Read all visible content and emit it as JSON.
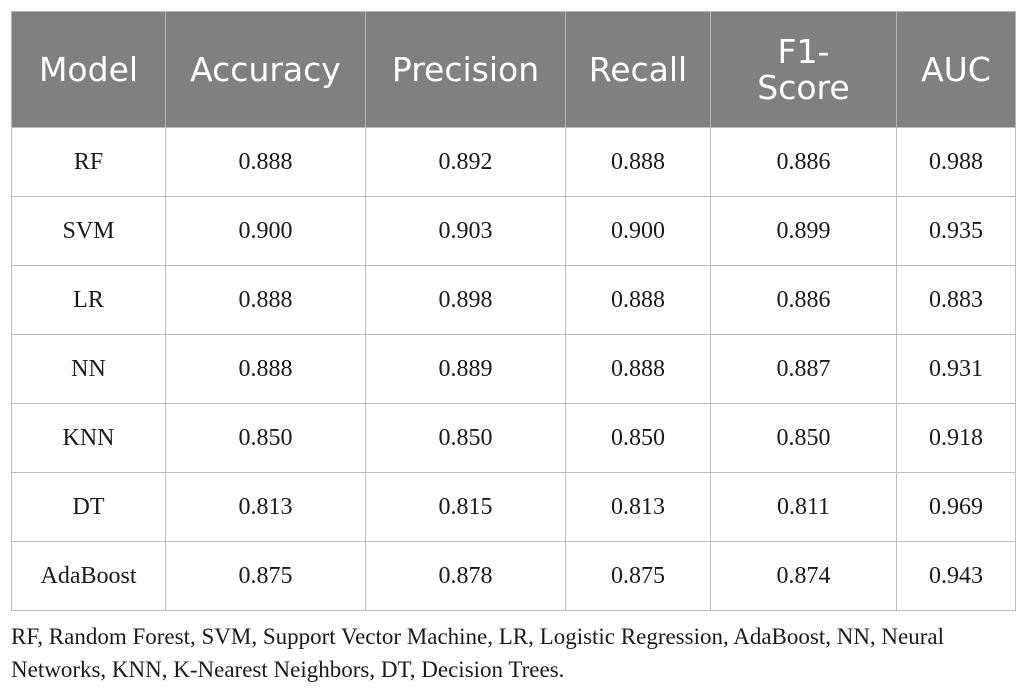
{
  "table": {
    "headers": [
      "Model",
      "Accuracy",
      "Precision",
      "Recall",
      "F1-Score",
      "AUC"
    ],
    "rows": [
      [
        "RF",
        "0.888",
        "0.892",
        "0.888",
        "0.886",
        "0.988"
      ],
      [
        "SVM",
        "0.900",
        "0.903",
        "0.900",
        "0.899",
        "0.935"
      ],
      [
        "LR",
        "0.888",
        "0.898",
        "0.888",
        "0.886",
        "0.883"
      ],
      [
        "NN",
        "0.888",
        "0.889",
        "0.888",
        "0.887",
        "0.931"
      ],
      [
        "KNN",
        "0.850",
        "0.850",
        "0.850",
        "0.850",
        "0.918"
      ],
      [
        "DT",
        "0.813",
        "0.815",
        "0.813",
        "0.811",
        "0.969"
      ],
      [
        "AdaBoost",
        "0.875",
        "0.878",
        "0.875",
        "0.874",
        "0.943"
      ]
    ]
  },
  "footnote": "RF, Random Forest, SVM, Support Vector Machine, LR, Logistic Regression, AdaBoost, NN, Neural Networks, KNN, K-Nearest Neighbors, DT, Decision Trees.",
  "colors": {
    "header_background": "#808080",
    "header_text": "#ffffff",
    "grid_lines": "#bdbdbd"
  }
}
